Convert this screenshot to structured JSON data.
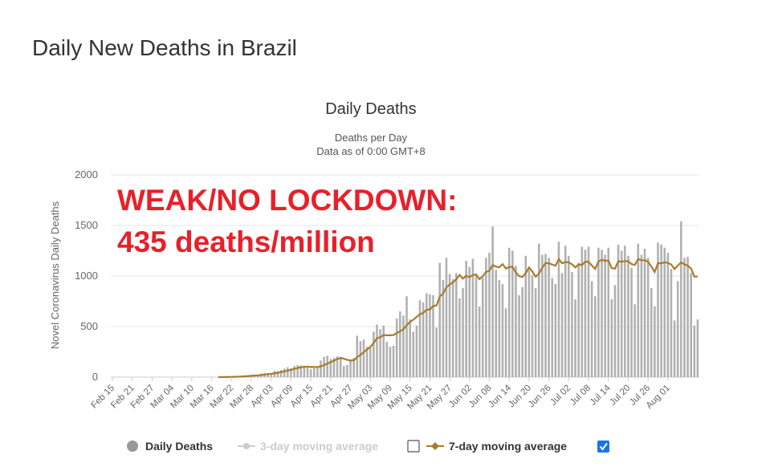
{
  "page": {
    "title": "Daily New Deaths in Brazil"
  },
  "chart_data": {
    "type": "bar",
    "title": "Daily Deaths",
    "subtitle_lines": [
      "Deaths per Day",
      "Data as of 0:00 GMT+8"
    ],
    "ylabel": "Novel Coronavirus Daily Deaths",
    "xlabel": "",
    "ylim": [
      0,
      2000
    ],
    "yticks": [
      0,
      500,
      1000,
      1500,
      2000
    ],
    "grid": true,
    "start_date": "Feb 15",
    "xtick_labels": [
      "Feb 15",
      "Feb 21",
      "Feb 27",
      "Mar 04",
      "Mar 10",
      "Mar 16",
      "Mar 22",
      "Mar 28",
      "Apr 03",
      "Apr 09",
      "Apr 15",
      "Apr 21",
      "Apr 27",
      "May 03",
      "May 09",
      "May 15",
      "May 21",
      "May 27",
      "Jun 02",
      "Jun 08",
      "Jun 14",
      "Jun 20",
      "Jun 26",
      "Jul 02",
      "Jul 08",
      "Jul 14",
      "Jul 20",
      "Jul 26",
      "Aug 01"
    ],
    "annotation_lines": [
      "WEAK/NO LOCKDOWN:",
      "435 deaths/million"
    ],
    "annotation_color": "#e8202a",
    "series": [
      {
        "name": "Daily Deaths",
        "type": "bar",
        "color": "#b0b0b0",
        "values": [
          0,
          0,
          0,
          0,
          0,
          0,
          0,
          0,
          0,
          0,
          0,
          0,
          0,
          0,
          0,
          0,
          0,
          0,
          0,
          0,
          0,
          0,
          0,
          0,
          0,
          0,
          0,
          0,
          0,
          0,
          0,
          0,
          1,
          1,
          3,
          4,
          6,
          7,
          9,
          12,
          15,
          18,
          22,
          25,
          22,
          35,
          42,
          40,
          38,
          62,
          58,
          72,
          85,
          98,
          88,
          110,
          120,
          115,
          100,
          92,
          78,
          88,
          105,
          165,
          200,
          210,
          180,
          190,
          205,
          180,
          110,
          120,
          170,
          190,
          410,
          355,
          370,
          300,
          290,
          450,
          520,
          475,
          510,
          350,
          300,
          310,
          580,
          650,
          610,
          800,
          570,
          450,
          510,
          760,
          740,
          830,
          820,
          810,
          490,
          1130,
          960,
          1180,
          1020,
          970,
          1030,
          780,
          880,
          1150,
          1090,
          1170,
          1010,
          700,
          980,
          1180,
          1230,
          1490,
          1060,
          960,
          920,
          680,
          1280,
          1250,
          1100,
          810,
          890,
          1200,
          1060,
          1010,
          880,
          1320,
          1210,
          1220,
          1180,
          980,
          920,
          1340,
          1030,
          1300,
          1200,
          1040,
          770,
          1130,
          1290,
          1260,
          1290,
          950,
          800,
          1280,
          1260,
          1210,
          1280,
          770,
          910,
          1310,
          1250,
          1300,
          1200,
          1080,
          720,
          1320,
          1210,
          1270,
          1180,
          880,
          700,
          1330,
          1310,
          1280,
          1230,
          1070,
          560,
          950,
          1540,
          1180,
          1190,
          1030,
          510,
          570
        ]
      },
      {
        "name": "3-day moving average",
        "type": "line",
        "color": "#cccccc",
        "visible": false
      },
      {
        "name": "7-day moving average",
        "type": "line",
        "color": "#a67c2e",
        "visible": true
      }
    ],
    "legend": {
      "placement": "bottom-center",
      "checkbox_3day": false,
      "checkbox_7day": true,
      "checkbox_color": "#1a73e8"
    }
  }
}
